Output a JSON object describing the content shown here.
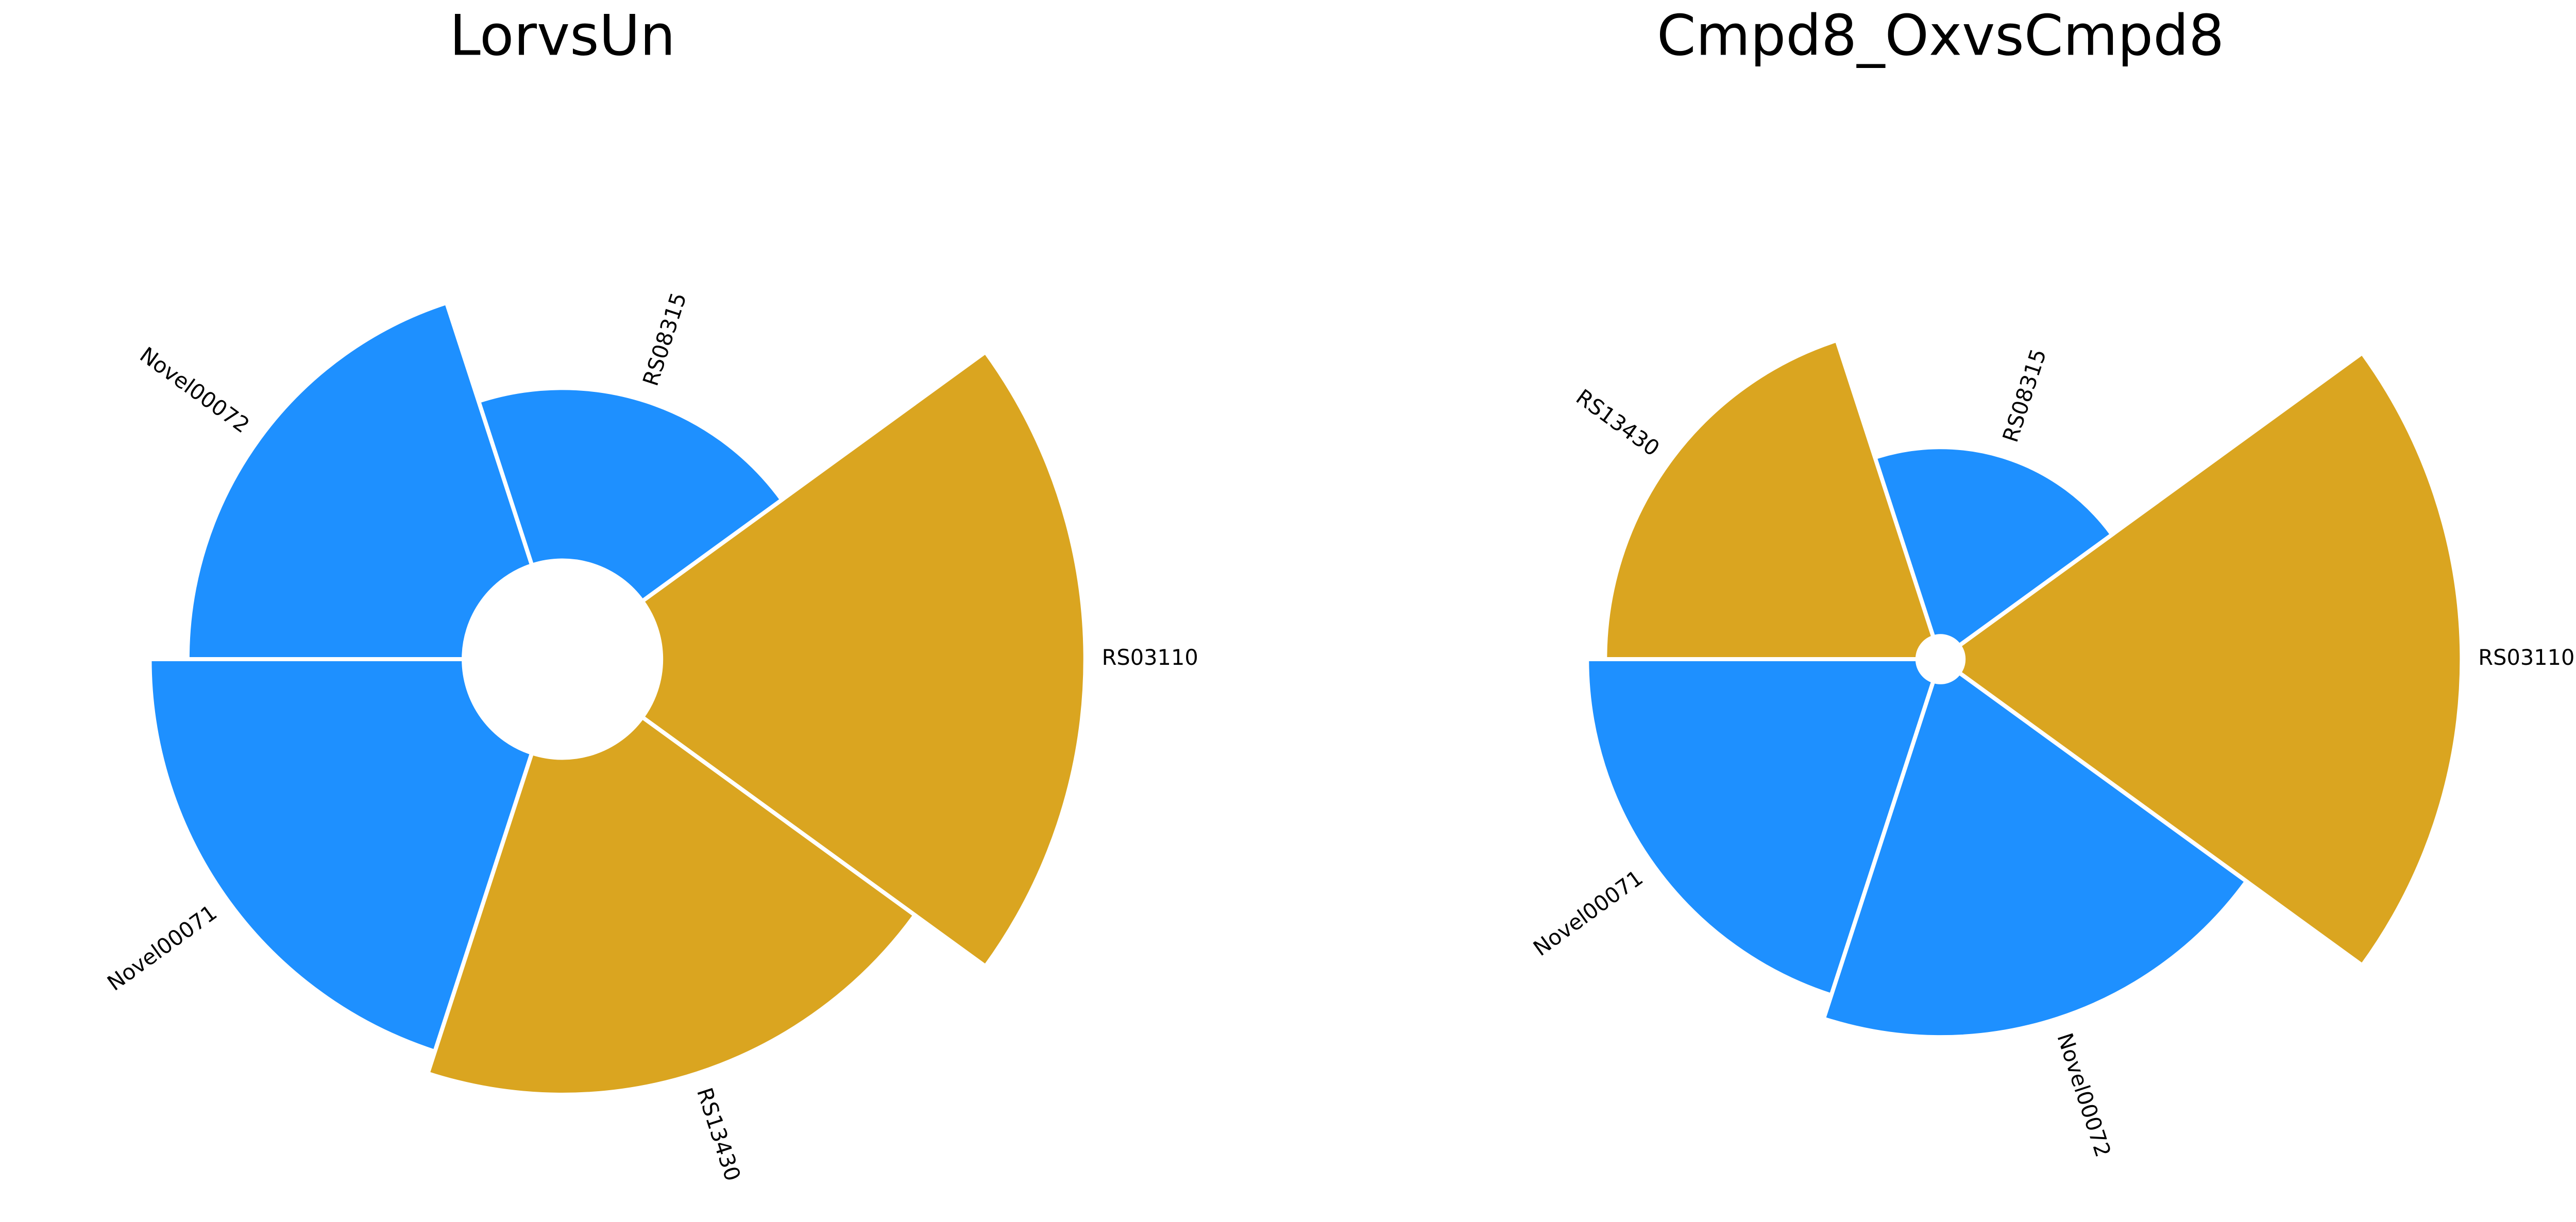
{
  "chart_data": [
    {
      "type": "radial-bar",
      "title": "LorvsUn",
      "categories": [
        "RS03110",
        "RS08315",
        "Novel00072",
        "Novel00071",
        "RS13430"
      ],
      "values": [
        258,
        105,
        168,
        191,
        205
      ],
      "colors": [
        "#daa520",
        "#1e90ff",
        "#1e90ff",
        "#1e90ff",
        "#daa520"
      ]
    },
    {
      "type": "radial-bar",
      "title": "Cmpd8_OxvsCmpd8",
      "categories": [
        "RS03110",
        "RS08315",
        "RS13430",
        "Novel00071",
        "Novel00072"
      ],
      "values": [
        303,
        115,
        190,
        201,
        216
      ],
      "colors": [
        "#daa520",
        "#1e90ff",
        "#daa520",
        "#1e90ff",
        "#1e90ff"
      ]
    }
  ]
}
